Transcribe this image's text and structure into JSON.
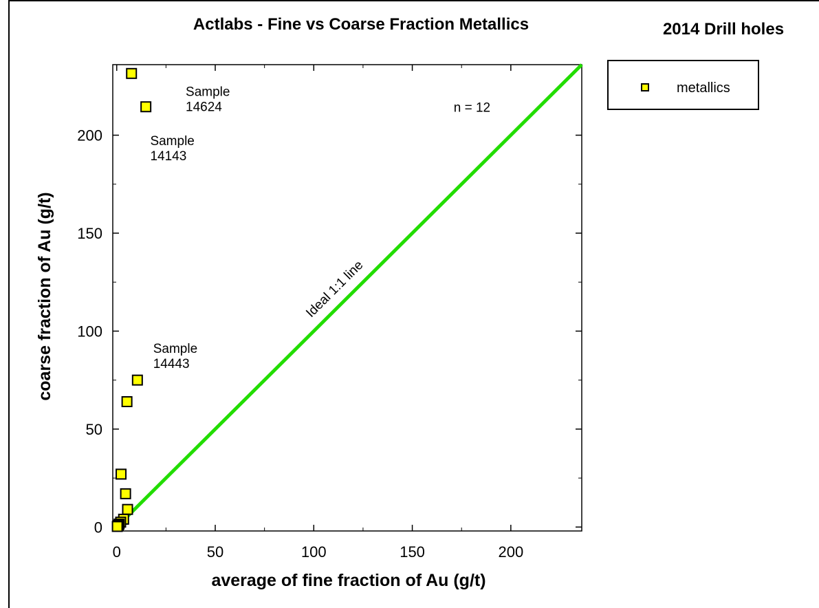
{
  "chart_data": {
    "type": "scatter",
    "title": "Actlabs - Fine vs Coarse Fraction Metallics",
    "subtitle": "2014 Drill holes",
    "xlabel": "average of fine fraction of Au (g/t)",
    "ylabel": "coarse fraction of Au (g/t)",
    "xlim": [
      -2,
      236
    ],
    "ylim": [
      -2,
      236
    ],
    "xticks": [
      0,
      50,
      100,
      150,
      200
    ],
    "yticks": [
      0,
      50,
      100,
      150,
      200
    ],
    "grid": false,
    "legend_position": "right",
    "series": [
      {
        "name": "metallics",
        "marker": "square",
        "color": "#ffff00",
        "points": [
          {
            "x": 7.5,
            "y": 231.5
          },
          {
            "x": 14.8,
            "y": 214.5
          },
          {
            "x": 10.5,
            "y": 75
          },
          {
            "x": 5.2,
            "y": 64
          },
          {
            "x": 2.2,
            "y": 27
          },
          {
            "x": 4.5,
            "y": 17
          },
          {
            "x": 5.5,
            "y": 9
          },
          {
            "x": 3.5,
            "y": 4
          },
          {
            "x": 2.0,
            "y": 2.5
          },
          {
            "x": 1.2,
            "y": 1.5
          },
          {
            "x": 0.8,
            "y": 0.8
          },
          {
            "x": 0.3,
            "y": 0.3
          }
        ]
      }
    ],
    "reference_line": {
      "label": "Ideal 1:1 line",
      "color": "#22dd00",
      "from": [
        0,
        0
      ],
      "to": [
        236,
        236
      ]
    },
    "annotations": [
      {
        "id": "ann-14624",
        "lines": [
          "Sample",
          "14624"
        ],
        "x": 35,
        "y": 220
      },
      {
        "id": "ann-14143",
        "lines": [
          "Sample",
          "14143"
        ],
        "x": 17,
        "y": 195
      },
      {
        "id": "ann-14443",
        "lines": [
          "Sample",
          "14443"
        ],
        "x": 18.5,
        "y": 89
      },
      {
        "id": "ann-n",
        "lines": [
          "n = 12"
        ],
        "x": 171,
        "y": 212
      }
    ]
  }
}
